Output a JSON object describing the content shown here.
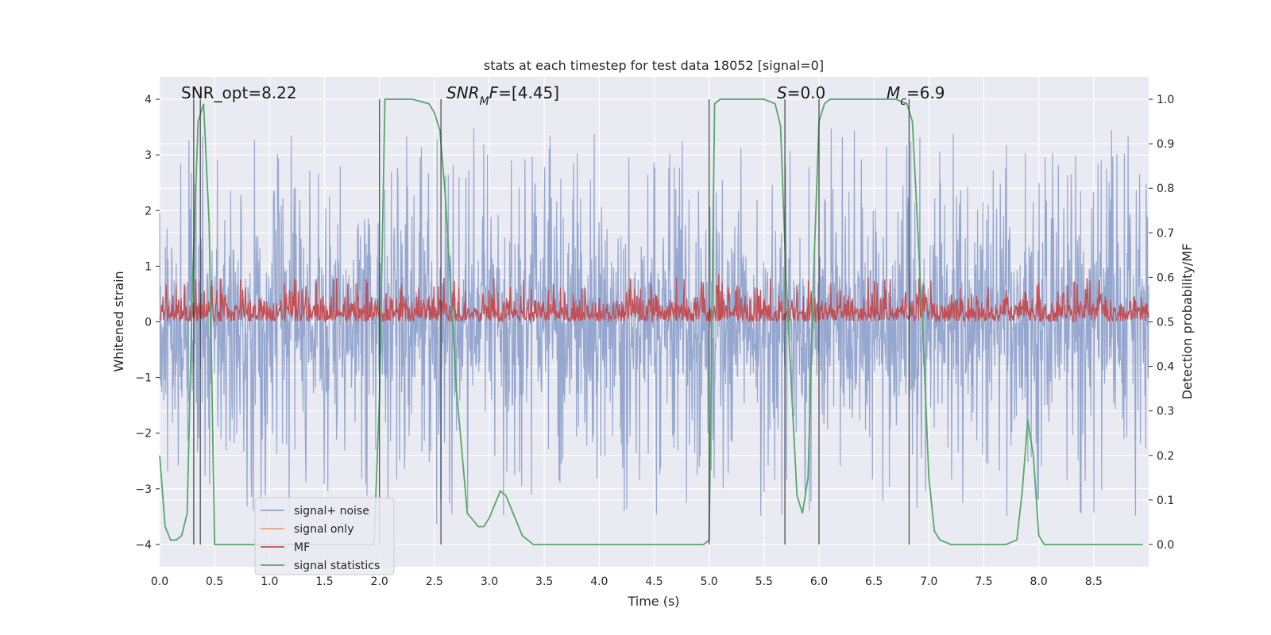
{
  "chart_data": {
    "type": "line",
    "title": "stats at each timestep for test data 18052 [signal=0]",
    "xlabel": "Time (s)",
    "ylabel": "Whitened strain",
    "ylabel_right": "Detection probability/MF",
    "xlim": [
      0.0,
      9.0
    ],
    "ylim": [
      -4.4,
      4.4
    ],
    "ylim_right": [
      -0.05,
      1.05
    ],
    "x_ticks": [
      "0.0",
      "0.5",
      "1.0",
      "1.5",
      "2.0",
      "2.5",
      "3.0",
      "3.5",
      "4.0",
      "4.5",
      "5.0",
      "5.5",
      "6.0",
      "6.5",
      "7.0",
      "7.5",
      "8.0",
      "8.5"
    ],
    "y_ticks": [
      "−4",
      "−3",
      "−2",
      "−1",
      "0",
      "1",
      "2",
      "3",
      "4"
    ],
    "y_ticks_right": [
      "0.0",
      "0.1",
      "0.2",
      "0.3",
      "0.4",
      "0.5",
      "0.6",
      "0.7",
      "0.8",
      "0.9",
      "1.0"
    ],
    "grid": true,
    "legend_position": "lower-left",
    "annotations": [
      {
        "text": "SNR_opt=8.22",
        "x": 0.2
      },
      {
        "text": "SNR_MF=[4.45]",
        "x": 2.6
      },
      {
        "text": "S=0.0",
        "x": 5.6
      },
      {
        "text": "M_c=6.9",
        "x": 6.6
      }
    ],
    "vertical_markers": [
      0.31,
      0.37,
      2.0,
      2.56,
      5.0,
      5.69,
      6.0,
      6.82
    ],
    "series": [
      {
        "name": "signal+ noise",
        "color": "#8da0cb",
        "kind": "noise",
        "amplitude": 3.4
      },
      {
        "name": "signal only",
        "color": "#e8a07a",
        "kind": "flat",
        "values": []
      },
      {
        "name": "MF",
        "color": "#c44e52",
        "kind": "mf",
        "range_right": [
          0.5,
          0.6
        ]
      },
      {
        "name": "signal statistics",
        "color": "#55a868",
        "axis": "right",
        "x": [
          0.0,
          0.05,
          0.1,
          0.15,
          0.2,
          0.25,
          0.3,
          0.35,
          0.4,
          0.45,
          0.5,
          0.55,
          0.6,
          1.0,
          1.5,
          1.95,
          2.0,
          2.05,
          2.1,
          2.3,
          2.45,
          2.5,
          2.55,
          2.6,
          2.7,
          2.8,
          2.9,
          2.95,
          3.0,
          3.05,
          3.1,
          3.15,
          3.2,
          3.3,
          3.4,
          3.5,
          4.0,
          4.5,
          4.95,
          5.0,
          5.05,
          5.1,
          5.3,
          5.5,
          5.6,
          5.65,
          5.7,
          5.75,
          5.8,
          5.85,
          5.9,
          5.95,
          6.0,
          6.05,
          6.1,
          6.3,
          6.7,
          6.8,
          6.85,
          6.9,
          6.95,
          7.0,
          7.05,
          7.1,
          7.2,
          7.5,
          7.7,
          7.8,
          7.85,
          7.9,
          7.95,
          8.0,
          8.05,
          8.2,
          8.5,
          8.95
        ],
        "y": [
          0.2,
          0.04,
          0.01,
          0.01,
          0.02,
          0.07,
          0.6,
          0.95,
          0.99,
          0.72,
          0.0,
          0.0,
          0.0,
          0.0,
          0.0,
          0.0,
          0.33,
          1.0,
          1.0,
          1.0,
          0.99,
          0.97,
          0.93,
          0.78,
          0.35,
          0.07,
          0.04,
          0.04,
          0.06,
          0.09,
          0.12,
          0.11,
          0.08,
          0.02,
          0.0,
          0.0,
          0.0,
          0.0,
          0.0,
          0.01,
          0.99,
          1.0,
          1.0,
          1.0,
          0.99,
          0.94,
          0.6,
          0.35,
          0.11,
          0.07,
          0.15,
          0.6,
          0.95,
          0.99,
          1.0,
          1.0,
          1.0,
          0.99,
          0.95,
          0.7,
          0.45,
          0.15,
          0.03,
          0.01,
          0.0,
          0.0,
          0.0,
          0.01,
          0.12,
          0.28,
          0.2,
          0.02,
          0.0,
          0.0,
          0.0,
          0.0
        ]
      }
    ]
  }
}
